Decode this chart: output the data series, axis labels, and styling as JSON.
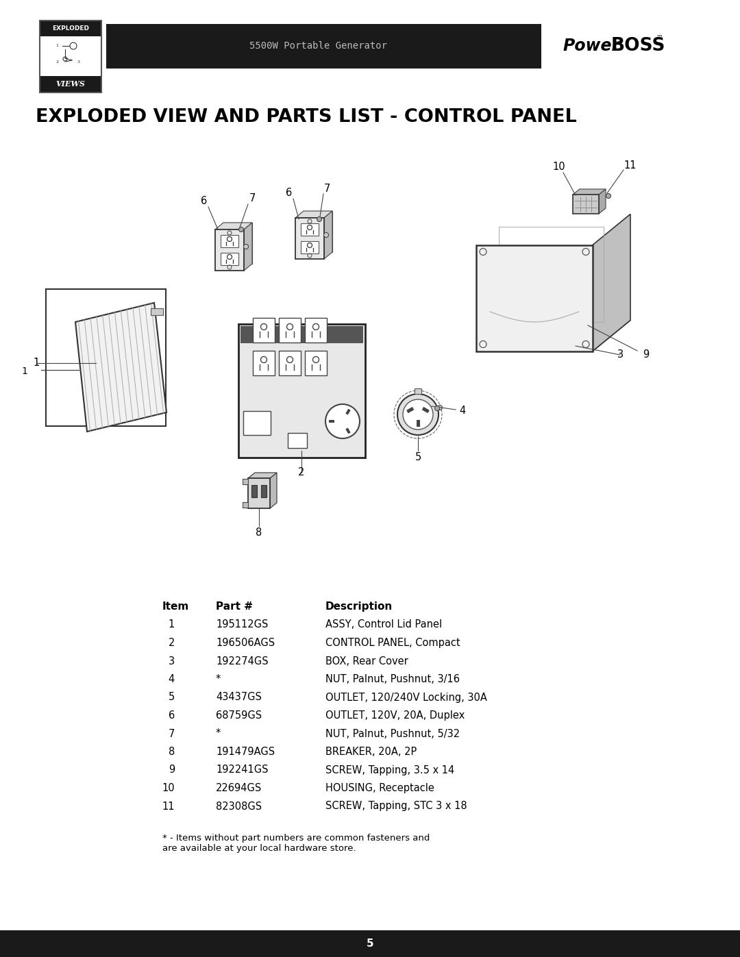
{
  "title": "EXPLODED VIEW AND PARTS LIST - CONTROL PANEL",
  "header_center": "5500W Portable Generator",
  "header_bg": "#1a1a1a",
  "page_bg": "#ffffff",
  "page_number": "5",
  "footer_bg": "#1a1a1a",
  "parts_table": {
    "headers": [
      "Item",
      "Part #",
      "Description"
    ],
    "rows": [
      [
        "1",
        "195112GS",
        "ASSY, Control Lid Panel"
      ],
      [
        "2",
        "196506AGS",
        "CONTROL PANEL, Compact"
      ],
      [
        "3",
        "192274GS",
        "BOX, Rear Cover"
      ],
      [
        "4",
        "*",
        "NUT, Palnut, Pushnut, 3/16"
      ],
      [
        "5",
        "43437GS",
        "OUTLET, 120/240V Locking, 30A"
      ],
      [
        "6",
        "68759GS",
        "OUTLET, 120V, 20A, Duplex"
      ],
      [
        "7",
        "*",
        "NUT, Palnut, Pushnut, 5/32"
      ],
      [
        "8",
        "191479AGS",
        "BREAKER, 20A, 2P"
      ],
      [
        "9",
        "192241GS",
        "SCREW, Tapping, 3.5 x 14"
      ],
      [
        "10",
        "22694GS",
        "HOUSING, Receptacle"
      ],
      [
        "11",
        "82308GS",
        "SCREW, Tapping, STC 3 x 18"
      ]
    ]
  },
  "footnote": "* - Items without part numbers are common fasteners and\nare available at your local hardware store."
}
